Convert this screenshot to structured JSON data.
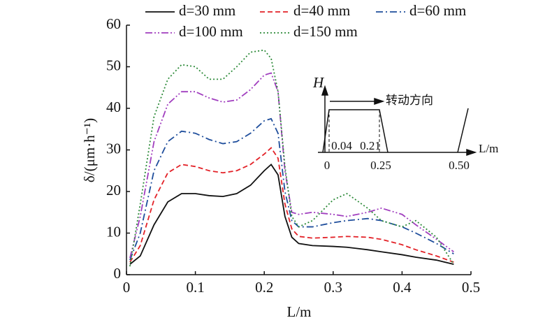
{
  "chart_data": {
    "type": "line",
    "xlabel": "L/m",
    "ylabel": "δ/(μm·h⁻¹)",
    "x": [
      0.005,
      0.02,
      0.04,
      0.06,
      0.08,
      0.1,
      0.12,
      0.14,
      0.16,
      0.18,
      0.2,
      0.21,
      0.22,
      0.23,
      0.24,
      0.25,
      0.27,
      0.3,
      0.32,
      0.35,
      0.37,
      0.4,
      0.42,
      0.45,
      0.475
    ],
    "series": [
      {
        "name": "d=30 mm",
        "color": "#111111",
        "values": [
          2.5,
          4.5,
          12,
          17.5,
          19.5,
          19.5,
          19,
          18.8,
          19.5,
          21.5,
          25,
          26.5,
          24,
          14,
          9,
          7.5,
          7,
          6.8,
          6.6,
          6,
          5.5,
          4.8,
          4.2,
          3.5,
          2.5
        ]
      },
      {
        "name": "d=40 mm",
        "color": "#e32228",
        "values": [
          3,
          7,
          18,
          24.5,
          26.5,
          26,
          25,
          24.5,
          25,
          26.5,
          29,
          30.5,
          28,
          17,
          11,
          9.2,
          8.8,
          9,
          9.2,
          9,
          8.5,
          7.2,
          6,
          4.5,
          3
        ]
      },
      {
        "name": "d=60 mm",
        "color": "#1f4e9c",
        "values": [
          3.5,
          10,
          25,
          32,
          34.5,
          34,
          32.5,
          31.5,
          32,
          34,
          37,
          37.5,
          34,
          20,
          13,
          11.5,
          11.5,
          12.5,
          13,
          13.5,
          13,
          11.5,
          10,
          7.5,
          5
        ]
      },
      {
        "name": "d=100 mm",
        "color": "#a13fbf",
        "values": [
          4,
          14,
          32,
          41,
          44,
          44,
          42.5,
          41.5,
          42,
          44.5,
          48,
          48.5,
          44,
          25,
          15,
          14.5,
          15,
          14.5,
          14,
          15,
          16,
          14.5,
          12,
          8.5,
          5.5
        ]
      },
      {
        "name": "d=150 mm",
        "color": "#2e8b3a",
        "values": [
          2,
          17,
          38,
          47,
          50.5,
          50,
          47,
          47,
          50,
          53.5,
          54,
          52,
          44,
          26,
          14,
          11.5,
          13,
          18,
          19.5,
          16,
          13,
          11.5,
          13,
          9,
          2.5
        ]
      }
    ],
    "xlim": [
      0,
      0.5
    ],
    "xticks": [
      0,
      0.1,
      0.2,
      0.3,
      0.4,
      0.5
    ],
    "ylim": [
      0,
      60
    ],
    "yticks": [
      0,
      10,
      20,
      30,
      40,
      50,
      60
    ],
    "inset": {
      "ylabel": "H",
      "xlabel": "L/m",
      "direction": "转动方向",
      "ticks": [
        "0",
        "0.25",
        "0.50"
      ],
      "marks": [
        "0.04",
        "0.21"
      ]
    }
  }
}
